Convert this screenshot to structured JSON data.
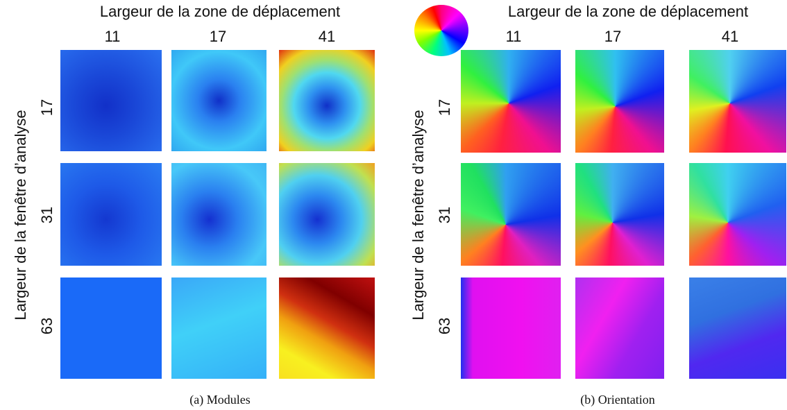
{
  "panels": [
    {
      "column_header": "Largeur de la zone de déplacement",
      "columns": [
        "11",
        "17",
        "41"
      ],
      "row_header": "Largeur de la fenêtre d’analyse",
      "rows": [
        "17",
        "31",
        "63"
      ],
      "caption": "(a)  Modules"
    },
    {
      "column_header": "Largeur de la zone de déplacement",
      "columns": [
        "11",
        "17",
        "41"
      ],
      "row_header": "Largeur de la fenêtre d’analyse",
      "rows": [
        "17",
        "31",
        "63"
      ],
      "caption": "(b)  Orientation"
    }
  ]
}
